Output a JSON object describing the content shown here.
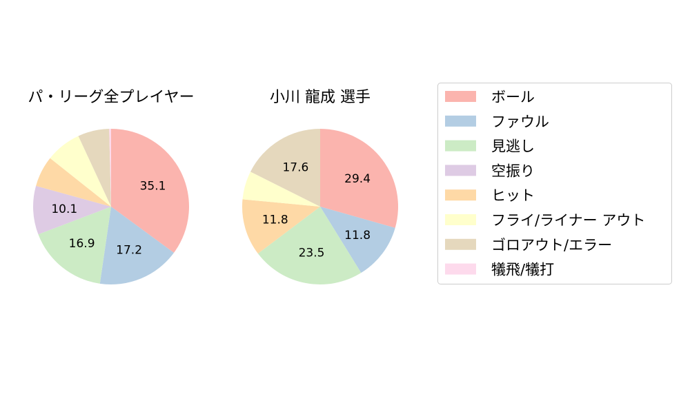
{
  "chart_data": [
    {
      "type": "pie",
      "title": "パ・リーグ全プレイヤー",
      "categories": [
        "ボール",
        "ファウル",
        "見逃し",
        "空振り",
        "ヒット",
        "フライ/ライナー アウト",
        "ゴロアウト/エラー",
        "犠飛/犠打"
      ],
      "values": [
        35.1,
        17.2,
        16.9,
        10.1,
        6.4,
        7.4,
        6.5,
        0.4
      ],
      "data_labels": [
        "35.1",
        "17.2",
        "16.9",
        "10.1",
        "",
        "",
        "",
        ""
      ]
    },
    {
      "type": "pie",
      "title": "小川 龍成  選手",
      "categories": [
        "ボール",
        "ファウル",
        "見逃し",
        "空振り",
        "ヒット",
        "フライ/ライナー アウト",
        "ゴロアウト/エラー",
        "犠飛/犠打"
      ],
      "values": [
        29.4,
        11.8,
        23.5,
        0,
        11.8,
        5.9,
        17.6,
        0
      ],
      "data_labels": [
        "29.4",
        "11.8",
        "23.5",
        "",
        "11.8",
        "",
        "17.6",
        ""
      ]
    }
  ],
  "legend": {
    "placement": "right",
    "items": [
      {
        "label": "ボール",
        "color": "#fbb4ae"
      },
      {
        "label": "ファウル",
        "color": "#b3cde3"
      },
      {
        "label": "見逃し",
        "color": "#ccebc5"
      },
      {
        "label": "空振り",
        "color": "#decbe4"
      },
      {
        "label": "ヒット",
        "color": "#fed9a6"
      },
      {
        "label": "フライ/ライナー アウト",
        "color": "#ffffcc"
      },
      {
        "label": "ゴロアウト/エラー",
        "color": "#e5d8bd"
      },
      {
        "label": "犠飛/犠打",
        "color": "#fddaec"
      }
    ]
  }
}
